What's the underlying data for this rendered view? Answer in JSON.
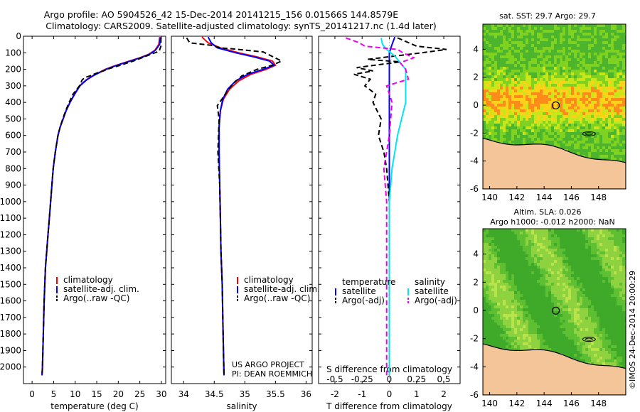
{
  "title": {
    "line1": "Argo profile: AO 5904526_42 15-Dec-2014 20141215_156 0.01566S 144.8579E",
    "line2": "Climatology: CARS2009. Satellite-adjusted climatology: synTS_20141217.nc (1.4d later)"
  },
  "credits": [
    "US ARGO PROJECT",
    "PI: DEAN ROEMMICH"
  ],
  "imos_stamp": "©IMOS 24-Dec-2014 20:00:29",
  "colors": {
    "climatology": "#ff0000",
    "satellite": "#0000ff",
    "argo": "#000000",
    "sat_s": "#00e5ee",
    "argo_s": "#ee00ee"
  },
  "chart_data": [
    {
      "type": "line",
      "panel": "temperature",
      "xlabel": "temperature (deg C)",
      "ylabel": "",
      "xlim": [
        -2,
        31
      ],
      "ylim": [
        2100,
        0
      ],
      "xticks": [
        "0",
        "5",
        "10",
        "15",
        "20",
        "25",
        "30"
      ],
      "xtick_values": [
        0,
        5,
        10,
        15,
        20,
        25,
        30
      ],
      "yticks": [
        "0",
        "100",
        "200",
        "300",
        "400",
        "500",
        "600",
        "700",
        "800",
        "900",
        "1000",
        "1100",
        "1200",
        "1300",
        "1400",
        "1500",
        "1600",
        "1700",
        "1800",
        "1900",
        "2000"
      ],
      "ytick_values": [
        0,
        100,
        200,
        300,
        400,
        500,
        600,
        700,
        800,
        900,
        1000,
        1100,
        1200,
        1300,
        1400,
        1500,
        1600,
        1700,
        1800,
        1900,
        2000
      ],
      "legend": [
        "climatology",
        "satellite-adj. clim.",
        "Argo(..raw -QC)"
      ],
      "legend_position": "lower-center",
      "series": [
        {
          "name": "climatology",
          "style": "solid",
          "color": "#ff0000",
          "x": [
            29.6,
            29.4,
            28.5,
            27.0,
            25.0,
            22.0,
            19.0,
            17.0,
            15.5,
            14.0,
            12.5,
            11.0,
            9.8,
            8.8,
            7.9,
            7.2,
            6.5,
            6.0,
            5.4,
            4.9,
            4.6,
            4.3,
            4.0,
            3.7,
            3.4,
            3.1,
            2.8,
            2.6,
            2.4,
            2.3
          ],
          "y": [
            5,
            50,
            85,
            110,
            130,
            155,
            180,
            200,
            220,
            240,
            265,
            300,
            350,
            400,
            450,
            500,
            550,
            600,
            700,
            800,
            900,
            1000,
            1100,
            1200,
            1300,
            1400,
            1600,
            1800,
            2000,
            2050
          ]
        },
        {
          "name": "satellite-adj. clim.",
          "style": "solid",
          "color": "#0000ff",
          "x": [
            29.8,
            29.6,
            28.6,
            27.2,
            25.2,
            22.2,
            19.2,
            17.2,
            15.6,
            14.1,
            12.6,
            11.1,
            9.9,
            8.8,
            7.9,
            7.2,
            6.5,
            6.0,
            5.4,
            4.9,
            4.6,
            4.3,
            4.0,
            3.7,
            3.4,
            3.1,
            2.8,
            2.6,
            2.4,
            2.3
          ],
          "y": [
            5,
            50,
            85,
            110,
            130,
            155,
            180,
            200,
            220,
            240,
            265,
            300,
            350,
            400,
            450,
            500,
            550,
            600,
            700,
            800,
            900,
            1000,
            1100,
            1200,
            1300,
            1400,
            1600,
            1800,
            2000,
            2050
          ]
        },
        {
          "name": "Argo(..raw -QC)",
          "style": "dashed",
          "color": "#000000",
          "x": [
            29.9,
            29.9,
            29.5,
            28.0,
            26.0,
            23.5,
            20.5,
            18.0,
            16.5,
            14.8,
            13.4,
            12.2,
            11.6,
            11.0,
            9.5,
            8.6,
            7.8,
            7.1,
            6.5,
            6.0,
            5.4,
            4.9,
            4.6,
            4.3,
            4.0,
            3.7,
            3.4,
            3.1,
            2.8,
            2.6,
            2.4,
            2.3
          ],
          "y": [
            10,
            60,
            90,
            105,
            125,
            150,
            175,
            195,
            210,
            225,
            240,
            250,
            265,
            300,
            350,
            400,
            450,
            500,
            550,
            600,
            700,
            800,
            900,
            1000,
            1100,
            1200,
            1300,
            1400,
            1600,
            1800,
            2000,
            2050
          ]
        }
      ]
    },
    {
      "type": "line",
      "panel": "salinity",
      "xlabel": "salinity",
      "ylabel": "",
      "xlim": [
        33.8,
        36.1
      ],
      "ylim": [
        2100,
        0
      ],
      "xticks": [
        "34",
        "34.5",
        "35",
        "35.5",
        "36"
      ],
      "xtick_values": [
        34,
        34.5,
        35,
        35.5,
        36
      ],
      "legend": [
        "climatology",
        "satellite-adj. clim.",
        "Argo(..raw -QC)"
      ],
      "legend_position": "lower-right",
      "series": [
        {
          "name": "climatology",
          "style": "solid",
          "color": "#ff0000",
          "x": [
            34.3,
            34.4,
            34.6,
            34.9,
            35.2,
            35.45,
            35.5,
            35.35,
            35.1,
            34.9,
            34.75,
            34.65,
            34.6,
            34.58,
            34.58,
            34.59,
            34.6,
            34.61,
            34.63,
            34.64,
            34.65,
            34.66
          ],
          "y": [
            5,
            40,
            70,
            100,
            125,
            150,
            175,
            200,
            230,
            270,
            320,
            380,
            450,
            550,
            700,
            900,
            1100,
            1300,
            1500,
            1700,
            1900,
            2050
          ]
        },
        {
          "name": "satellite-adj. clim.",
          "style": "solid",
          "color": "#0000ff",
          "x": [
            34.4,
            34.45,
            34.55,
            34.85,
            35.15,
            35.4,
            35.48,
            35.3,
            35.05,
            34.85,
            34.72,
            34.64,
            34.6,
            34.58,
            34.58,
            34.59,
            34.6,
            34.61,
            34.63,
            34.64,
            34.65,
            34.66
          ],
          "y": [
            5,
            40,
            70,
            100,
            125,
            150,
            175,
            200,
            230,
            270,
            320,
            380,
            450,
            550,
            700,
            900,
            1100,
            1300,
            1500,
            1700,
            1900,
            2050
          ]
        },
        {
          "name": "Argo(..raw -QC)",
          "style": "dashed",
          "color": "#000000",
          "x": [
            34.05,
            34.1,
            34.45,
            34.6,
            34.9,
            35.3,
            35.6,
            35.45,
            35.2,
            34.95,
            34.8,
            34.7,
            34.55,
            34.58,
            34.56,
            34.59,
            34.6,
            34.61,
            34.63,
            34.64,
            34.65,
            34.66
          ],
          "y": [
            10,
            40,
            55,
            70,
            80,
            95,
            150,
            175,
            200,
            240,
            290,
            340,
            420,
            500,
            700,
            900,
            1100,
            1300,
            1500,
            1700,
            1900,
            2050
          ]
        }
      ]
    },
    {
      "type": "line",
      "panel": "difference",
      "xlabel": "T difference from climatology",
      "xlabel_top": "S difference from climatology",
      "ylabel": "",
      "xlim": [
        -2.6,
        2.6
      ],
      "ylim": [
        2100,
        0
      ],
      "xticks": [
        "-2",
        "-1",
        "0",
        "1",
        "2"
      ],
      "xtick_values": [
        -2,
        -1,
        0,
        1,
        2
      ],
      "xticks_s": [
        "-0.5",
        "-0.25",
        "0",
        "0.25",
        "0.5"
      ],
      "xtick_values_s": [
        -0.5,
        -0.25,
        0,
        0.25,
        0.5
      ],
      "legend_groups": [
        {
          "title": "temperature",
          "items": [
            "satellite",
            "Argo(-adj)"
          ]
        },
        {
          "title": "salinity",
          "items": [
            "satellite",
            "Argo(-adj)"
          ]
        }
      ],
      "legend_position": "lower-center",
      "series": [
        {
          "name": "satellite",
          "group": "temperature",
          "style": "solid",
          "color": "#0000ff",
          "x": [
            0.2,
            0.1,
            0.0,
            0.0,
            0.0,
            0.0,
            0.0,
            0.0,
            0.0,
            0.0,
            0.0
          ],
          "y": [
            5,
            50,
            100,
            200,
            400,
            600,
            900,
            1200,
            1500,
            1800,
            2050
          ]
        },
        {
          "name": "Argo(-adj)",
          "group": "temperature",
          "style": "dashed",
          "color": "#000000",
          "x": [
            0.3,
            1.0,
            2.1,
            1.2,
            0.2,
            -0.8,
            0.4,
            -0.3,
            -1.2,
            -0.6,
            -1.3,
            -0.7,
            -0.9,
            -0.5,
            -0.6,
            -0.3,
            -0.4,
            -0.2,
            -0.1,
            0.0,
            0.0
          ],
          "y": [
            10,
            60,
            80,
            100,
            120,
            140,
            155,
            170,
            190,
            210,
            230,
            260,
            300,
            350,
            400,
            500,
            600,
            700,
            800,
            1000,
            2050
          ]
        },
        {
          "name": "satellite",
          "group": "salinity",
          "style": "solid",
          "color": "#00e5ee",
          "x": [
            -0.3,
            -0.25,
            -0.1,
            0.2,
            0.4,
            0.6,
            0.6,
            0.6,
            0.45,
            0.3,
            0.2,
            0.1,
            0.05,
            0.0,
            0.0,
            0.0
          ],
          "y": [
            10,
            50,
            80,
            120,
            160,
            200,
            300,
            400,
            500,
            600,
            700,
            800,
            900,
            1000,
            1500,
            2050
          ]
        },
        {
          "name": "Argo(-adj)",
          "group": "salinity",
          "style": "dashed",
          "color": "#ee00ee",
          "x": [
            -1.6,
            -1.1,
            -0.9,
            0.3,
            0.5,
            0.9,
            0.4,
            0.6,
            0.7,
            -0.1,
            0.1,
            0.0,
            -0.2,
            -0.1,
            -0.1,
            -0.1
          ],
          "y": [
            10,
            40,
            60,
            80,
            100,
            130,
            160,
            200,
            260,
            300,
            400,
            600,
            800,
            1000,
            1500,
            2050
          ]
        }
      ]
    },
    {
      "type": "heatmap",
      "panel": "sst_map",
      "title": "sat. SST: 29.7  Argo: 29.7",
      "xlim": [
        139.5,
        150
      ],
      "ylim": [
        -6,
        5.8
      ],
      "xticks": [
        "140",
        "142",
        "144",
        "146",
        "148"
      ],
      "xtick_values": [
        140,
        142,
        144,
        146,
        148
      ],
      "yticks": [
        "4",
        "2",
        "0",
        "-2",
        "-4",
        "-6"
      ],
      "ytick_values": [
        4,
        2,
        0,
        -2,
        -4,
        -6
      ],
      "marker": {
        "lon": 144.86,
        "lat": -0.016
      }
    },
    {
      "type": "heatmap",
      "panel": "sla_map",
      "title": "Altim. SLA: 0.026",
      "subtitle": "Argo h1000: -0.012 h2000: NaN",
      "xlim": [
        139.5,
        150
      ],
      "ylim": [
        -6,
        5.8
      ],
      "xticks": [
        "140",
        "142",
        "144",
        "146",
        "148"
      ],
      "xtick_values": [
        140,
        142,
        144,
        146,
        148
      ],
      "yticks": [
        "4",
        "2",
        "0",
        "-2",
        "-4",
        "-6"
      ],
      "ytick_values": [
        4,
        2,
        0,
        -2,
        -4,
        -6
      ],
      "marker": {
        "lon": 144.86,
        "lat": -0.016
      }
    }
  ]
}
